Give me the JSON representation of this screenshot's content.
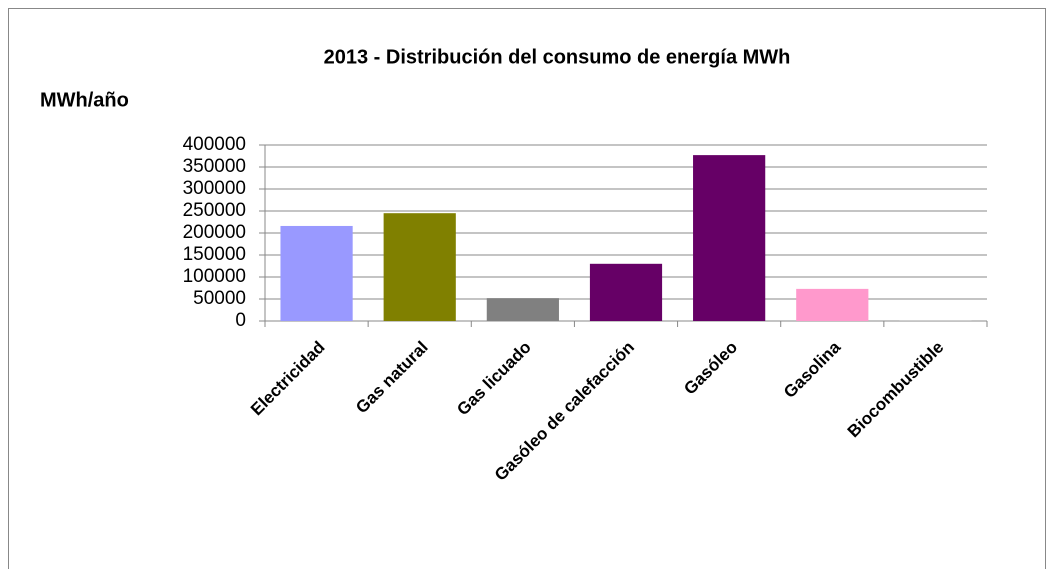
{
  "chart_data": {
    "type": "bar",
    "title": "2013 - Distribución del consumo de energía MWh",
    "y_label": "MWh/año",
    "categories": [
      "Electricidad",
      "Gas natural",
      "Gas licuado",
      "Gasóleo de calefacción",
      "Gasóleo",
      "Gasolina",
      "Biocombustible"
    ],
    "values": [
      216000,
      245000,
      52000,
      130000,
      377000,
      73000,
      1000
    ],
    "colors": [
      "#9999ff",
      "#808000",
      "#808080",
      "#660066",
      "#660066",
      "#ff99cc",
      "#a0a0a0"
    ],
    "ylim": [
      0,
      400000
    ],
    "yticks": [
      0,
      50000,
      100000,
      150000,
      200000,
      250000,
      300000,
      350000,
      400000
    ],
    "grid": true
  }
}
